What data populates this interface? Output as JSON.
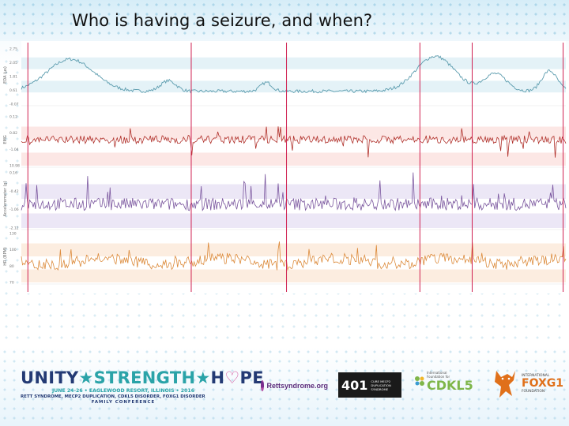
{
  "title": "Who is having a seizure, and when?",
  "chart_data": {
    "type": "line",
    "panels": [
      {
        "ylabel": "EDA (μs)",
        "ticks": [
          "2.75",
          "2.05",
          "1.81",
          "0.61",
          "-0.07"
        ],
        "color": "#5c9cae",
        "band_color": "#dff0f6",
        "baseline": 0.78,
        "series_hint": "flat with broad bumps"
      },
      {
        "ylabel": "EMG",
        "ticks": [
          "0.12",
          "0.82",
          "-1.04",
          "10.98"
        ],
        "color": "#b0302a",
        "band_color": "#fbe3e1",
        "baseline": 0.5
      },
      {
        "ylabel": "Accelerometer (g)",
        "ticks": [
          "0.16",
          "-0.42",
          "-1.06",
          "-2.12"
        ],
        "color": "#7a569e",
        "band_color": "#e9e3f4",
        "baseline": 0.7
      },
      {
        "ylabel": "HR (BPM)",
        "ticks": [
          "130",
          "100",
          "80",
          "70"
        ],
        "color": "#dc8a3a",
        "band_color": "#fbeadb",
        "baseline": 0.6
      }
    ],
    "event_markers_color": "#d02050",
    "event_marker_positions": [
      0.012,
      0.312,
      0.487,
      0.732,
      0.828,
      0.995
    ]
  },
  "logos": {
    "unity": {
      "word1": "UNITY",
      "star": "★",
      "word2": "STRENGTH",
      "word3a": "H",
      "word3b": "PE",
      "line1": "JUNE 24-26 • EAGLEWOOD RESORT, ILLINOIS • 2016",
      "line2": "RETT SYNDROME, MECP2 DUPLICATION, CDKL5 DISORDER, FOXG1 DISORDER",
      "line3": "FAMILY CONFERENCE"
    },
    "rett": {
      "text": "Rettsyndrome.org"
    },
    "f401": {
      "num": "401",
      "line1": "CURE MECP2",
      "line2": "DUPLICATION",
      "line3": "SYNDROME"
    },
    "cdkl5": {
      "small1": "International",
      "small2": "Foundation for",
      "big": "CDKL5"
    },
    "foxg1": {
      "small1": "INTERNATIONAL",
      "big": "FOXG1",
      "small2": "FOUNDATION"
    }
  }
}
